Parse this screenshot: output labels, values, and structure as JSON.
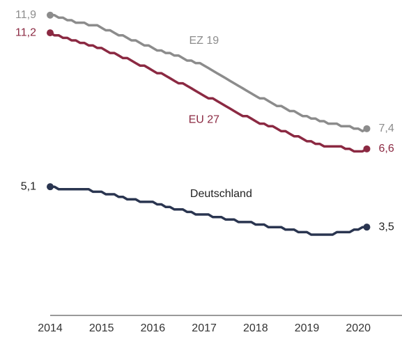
{
  "chart_data": {
    "type": "line",
    "categories": [
      "2014",
      null,
      null,
      null,
      null,
      null,
      null,
      null,
      null,
      null,
      null,
      null,
      "2015",
      null,
      null,
      null,
      null,
      null,
      null,
      null,
      null,
      null,
      null,
      null,
      "2016",
      null,
      null,
      null,
      null,
      null,
      null,
      null,
      null,
      null,
      null,
      null,
      "2017",
      null,
      null,
      null,
      null,
      null,
      null,
      null,
      null,
      null,
      null,
      null,
      "2018",
      null,
      null,
      null,
      null,
      null,
      null,
      null,
      null,
      null,
      null,
      null,
      "2019",
      null,
      null,
      null,
      null,
      null,
      null,
      null,
      null,
      null,
      null,
      null,
      "2020",
      null,
      null
    ],
    "ylim": [
      0,
      12.5
    ],
    "series": [
      {
        "name": "EZ 19",
        "color": "#8c8c8c",
        "values": [
          11.9,
          11.9,
          11.8,
          11.8,
          11.7,
          11.7,
          11.6,
          11.6,
          11.6,
          11.5,
          11.5,
          11.5,
          11.4,
          11.3,
          11.3,
          11.2,
          11.1,
          11.1,
          11.0,
          10.9,
          10.9,
          10.8,
          10.7,
          10.7,
          10.6,
          10.5,
          10.5,
          10.4,
          10.4,
          10.3,
          10.3,
          10.2,
          10.1,
          10.1,
          10.0,
          10.0,
          9.9,
          9.8,
          9.7,
          9.6,
          9.5,
          9.4,
          9.3,
          9.2,
          9.1,
          9.0,
          8.9,
          8.8,
          8.7,
          8.6,
          8.6,
          8.5,
          8.4,
          8.3,
          8.3,
          8.2,
          8.1,
          8.1,
          8.0,
          7.9,
          7.9,
          7.8,
          7.8,
          7.7,
          7.7,
          7.6,
          7.6,
          7.6,
          7.5,
          7.5,
          7.5,
          7.4,
          7.4,
          7.3,
          7.4
        ],
        "value_labels": [
          "11,9",
          null,
          null,
          null,
          null,
          null,
          null,
          null,
          null,
          null,
          null,
          null,
          null,
          null,
          null,
          null,
          null,
          null,
          null,
          null,
          null,
          null,
          null,
          null,
          null,
          null,
          null,
          null,
          null,
          null,
          null,
          null,
          null,
          null,
          null,
          null,
          null,
          null,
          null,
          null,
          null,
          null,
          null,
          null,
          null,
          null,
          null,
          null,
          null,
          null,
          null,
          null,
          null,
          null,
          null,
          null,
          null,
          null,
          null,
          null,
          null,
          null,
          null,
          null,
          null,
          null,
          null,
          null,
          null,
          null,
          null,
          null,
          null,
          null,
          "7,4"
        ]
      },
      {
        "name": "EU 27",
        "color": "#8b2942",
        "values": [
          11.2,
          11.1,
          11.1,
          11.0,
          11.0,
          10.9,
          10.9,
          10.8,
          10.8,
          10.7,
          10.7,
          10.6,
          10.6,
          10.5,
          10.4,
          10.4,
          10.3,
          10.2,
          10.2,
          10.1,
          10.0,
          9.9,
          9.9,
          9.8,
          9.7,
          9.6,
          9.6,
          9.5,
          9.4,
          9.3,
          9.2,
          9.2,
          9.1,
          9.0,
          8.9,
          8.8,
          8.7,
          8.6,
          8.6,
          8.5,
          8.4,
          8.3,
          8.2,
          8.1,
          8.0,
          7.9,
          7.9,
          7.8,
          7.7,
          7.6,
          7.6,
          7.5,
          7.5,
          7.4,
          7.3,
          7.3,
          7.2,
          7.1,
          7.1,
          7.0,
          6.9,
          6.9,
          6.8,
          6.8,
          6.7,
          6.7,
          6.7,
          6.7,
          6.7,
          6.6,
          6.6,
          6.5,
          6.5,
          6.5,
          6.6
        ],
        "value_labels": [
          "11,2",
          null,
          null,
          null,
          null,
          null,
          null,
          null,
          null,
          null,
          null,
          null,
          null,
          null,
          null,
          null,
          null,
          null,
          null,
          null,
          null,
          null,
          null,
          null,
          null,
          null,
          null,
          null,
          null,
          null,
          null,
          null,
          null,
          null,
          null,
          null,
          null,
          null,
          null,
          null,
          null,
          null,
          null,
          null,
          null,
          null,
          null,
          null,
          null,
          null,
          null,
          null,
          null,
          null,
          null,
          null,
          null,
          null,
          null,
          null,
          null,
          null,
          null,
          null,
          null,
          null,
          null,
          null,
          null,
          null,
          null,
          null,
          null,
          null,
          "6,6"
        ]
      },
      {
        "name": "Deutschland",
        "color": "#2a3550",
        "values": [
          5.1,
          5.1,
          5.0,
          5.0,
          5.0,
          5.0,
          5.0,
          5.0,
          5.0,
          5.0,
          4.9,
          4.9,
          4.9,
          4.8,
          4.8,
          4.8,
          4.7,
          4.7,
          4.6,
          4.6,
          4.6,
          4.5,
          4.5,
          4.5,
          4.5,
          4.4,
          4.4,
          4.3,
          4.3,
          4.2,
          4.2,
          4.2,
          4.1,
          4.1,
          4.0,
          4.0,
          4.0,
          4.0,
          3.9,
          3.9,
          3.9,
          3.8,
          3.8,
          3.8,
          3.7,
          3.7,
          3.7,
          3.7,
          3.6,
          3.6,
          3.6,
          3.5,
          3.5,
          3.5,
          3.5,
          3.4,
          3.4,
          3.4,
          3.3,
          3.3,
          3.3,
          3.2,
          3.2,
          3.2,
          3.2,
          3.2,
          3.2,
          3.3,
          3.3,
          3.3,
          3.3,
          3.4,
          3.4,
          3.5,
          3.5
        ],
        "value_labels": [
          "5,1",
          null,
          null,
          null,
          null,
          null,
          null,
          null,
          null,
          null,
          null,
          null,
          null,
          null,
          null,
          null,
          null,
          null,
          null,
          null,
          null,
          null,
          null,
          null,
          null,
          null,
          null,
          null,
          null,
          null,
          null,
          null,
          null,
          null,
          null,
          null,
          null,
          null,
          null,
          null,
          null,
          null,
          null,
          null,
          null,
          null,
          null,
          null,
          null,
          null,
          null,
          null,
          null,
          null,
          null,
          null,
          null,
          null,
          null,
          null,
          null,
          null,
          null,
          null,
          null,
          null,
          null,
          null,
          null,
          null,
          null,
          null,
          null,
          null,
          "3,5"
        ]
      }
    ]
  }
}
